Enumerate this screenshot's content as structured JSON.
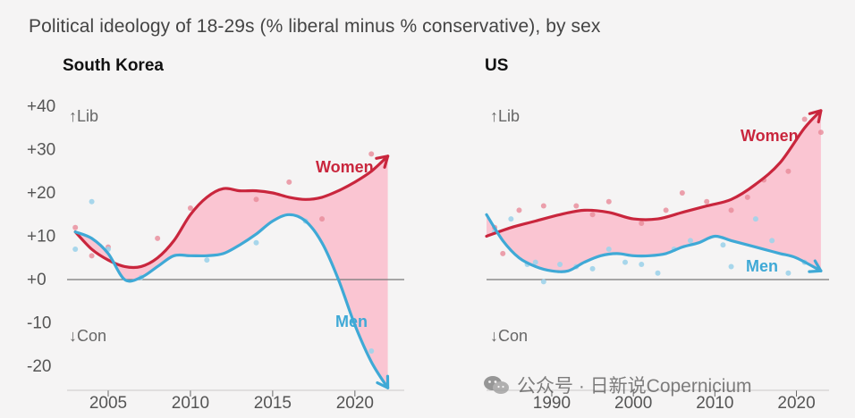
{
  "title": "Political ideology of 18-29s (% liberal minus % conservative), by sex",
  "watermark": {
    "text": "公众号 · 日新说Copernicium",
    "icon": "wechat-icon"
  },
  "colors": {
    "women": "#c9263d",
    "men": "#3fa9d6",
    "fill": "#fbb6c7",
    "axis": "#666666",
    "tick": "#666666"
  },
  "chart_data": [
    {
      "type": "line",
      "panel": "South Korea",
      "y_ticks": [
        "+40",
        "+30",
        "+20",
        "+10",
        "+0",
        "-10",
        "-20"
      ],
      "y_tick_values": [
        40,
        30,
        20,
        10,
        0,
        -10,
        -20
      ],
      "ylim": [
        -25,
        40
      ],
      "xlim": [
        2002.5,
        2023
      ],
      "x_ticks": [
        "2005",
        "2010",
        "2015",
        "2020"
      ],
      "x_tick_values": [
        2005,
        2010,
        2015,
        2020
      ],
      "annotations": {
        "lib": "↑Lib",
        "con": "↓Con"
      },
      "series": [
        {
          "name": "Women",
          "x": [
            2003,
            2004,
            2005,
            2006,
            2007,
            2008,
            2009,
            2010,
            2011,
            2012,
            2013,
            2014,
            2015,
            2016,
            2017,
            2018,
            2019,
            2020,
            2021,
            2022
          ],
          "values": [
            11,
            7,
            4.5,
            3,
            3,
            5,
            9,
            15,
            19,
            21,
            20.5,
            20.5,
            20,
            19,
            18.5,
            19,
            20.5,
            22.5,
            25,
            28.5
          ],
          "points": [
            [
              2003,
              12
            ],
            [
              2004,
              5.5
            ],
            [
              2005,
              7.5
            ],
            [
              2008,
              9.5
            ],
            [
              2010,
              16.5
            ],
            [
              2014,
              18.5
            ],
            [
              2016,
              22.5
            ],
            [
              2018,
              14
            ],
            [
              2021,
              29
            ]
          ]
        },
        {
          "name": "Men",
          "x": [
            2003,
            2004,
            2005,
            2006,
            2007,
            2008,
            2009,
            2010,
            2011,
            2012,
            2013,
            2014,
            2015,
            2016,
            2017,
            2018,
            2019,
            2020,
            2021,
            2022
          ],
          "values": [
            11,
            9.5,
            6,
            0,
            0.5,
            3,
            5.5,
            5.5,
            5.5,
            6,
            8,
            10.5,
            13.5,
            15,
            13.5,
            8.5,
            0,
            -10.5,
            -19,
            -25
          ],
          "points": [
            [
              2003,
              7
            ],
            [
              2004,
              18
            ],
            [
              2005,
              7
            ],
            [
              2007,
              0.5
            ],
            [
              2011,
              4.5
            ],
            [
              2014,
              8.5
            ],
            [
              2017,
              13.5
            ],
            [
              2021,
              -16.5
            ]
          ]
        }
      ]
    },
    {
      "type": "line",
      "panel": "US",
      "ylim": [
        -25,
        40
      ],
      "xlim": [
        1982,
        2024
      ],
      "x_ticks": [
        "1990",
        "2000",
        "2010",
        "2020"
      ],
      "x_tick_values": [
        1990,
        2000,
        2010,
        2020
      ],
      "annotations": {
        "lib": "↑Lib",
        "con": "↓Con"
      },
      "series": [
        {
          "name": "Women",
          "x": [
            1982,
            1985,
            1988,
            1991,
            1994,
            1997,
            2000,
            2003,
            2006,
            2009,
            2012,
            2015,
            2018,
            2021,
            2023
          ],
          "values": [
            10,
            12,
            13.5,
            15,
            16,
            15.5,
            14,
            14,
            15.5,
            17,
            18.5,
            22,
            27,
            35,
            39
          ],
          "points": [
            [
              1983,
              12
            ],
            [
              1984,
              6
            ],
            [
              1986,
              16
            ],
            [
              1989,
              17
            ],
            [
              1993,
              17
            ],
            [
              1995,
              15
            ],
            [
              1997,
              18
            ],
            [
              2001,
              13
            ],
            [
              2004,
              16
            ],
            [
              2006,
              20
            ],
            [
              2009,
              18
            ],
            [
              2012,
              16
            ],
            [
              2014,
              19
            ],
            [
              2016,
              23
            ],
            [
              2019,
              25
            ],
            [
              2021,
              37
            ],
            [
              2023,
              34
            ]
          ]
        },
        {
          "name": "Men",
          "x": [
            1982,
            1984,
            1986,
            1988,
            1990,
            1992,
            1994,
            1996,
            1998,
            2000,
            2002,
            2004,
            2006,
            2008,
            2010,
            2012,
            2014,
            2016,
            2018,
            2020,
            2023
          ],
          "values": [
            15,
            9,
            5,
            3,
            2,
            2,
            4,
            5.5,
            6,
            5.5,
            5.5,
            6,
            7.5,
            8.5,
            10,
            9,
            8,
            7,
            6,
            5,
            2
          ],
          "points": [
            [
              1983,
              11
            ],
            [
              1985,
              14
            ],
            [
              1987,
              3.5
            ],
            [
              1988,
              4
            ],
            [
              1989,
              -0.5
            ],
            [
              1991,
              3.5
            ],
            [
              1993,
              3
            ],
            [
              1995,
              2.5
            ],
            [
              1997,
              7
            ],
            [
              1999,
              4
            ],
            [
              2001,
              3.5
            ],
            [
              2003,
              1.5
            ],
            [
              2005,
              7
            ],
            [
              2007,
              9
            ],
            [
              2011,
              8
            ],
            [
              2012,
              3
            ],
            [
              2015,
              14
            ],
            [
              2017,
              9
            ],
            [
              2019,
              1.5
            ],
            [
              2021,
              4
            ]
          ]
        }
      ]
    }
  ]
}
